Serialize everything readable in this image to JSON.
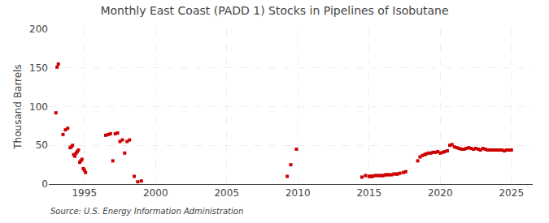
{
  "chart_data": {
    "type": "scatter",
    "title": "Monthly East Coast (PADD 1) Stocks in Pipelines of Isobutane",
    "ylabel": "Thousand Barrels",
    "annotations": [
      "Source: U.S. Energy Information Administration"
    ],
    "color": "#cc0000",
    "marker": "square",
    "grid": true,
    "xlim": [
      1992.5,
      2026.5
    ],
    "ylim": [
      0,
      200
    ],
    "xticks": [
      1995,
      2000,
      2005,
      2010,
      2015,
      2020,
      2025
    ],
    "yticks": [
      0,
      50,
      100,
      150,
      200
    ],
    "x": [
      1993.0,
      1993.08,
      1993.17,
      1993.5,
      1993.67,
      1993.83,
      1994.0,
      1994.08,
      1994.17,
      1994.25,
      1994.33,
      1994.42,
      1994.5,
      1994.58,
      1994.67,
      1994.75,
      1994.83,
      1994.92,
      1995.0,
      1995.08,
      1996.5,
      1996.67,
      1996.83,
      1997.0,
      1997.17,
      1997.33,
      1997.5,
      1997.67,
      1997.83,
      1998.0,
      1998.17,
      1998.5,
      1998.75,
      1999.0,
      2009.25,
      2009.5,
      2009.9,
      2014.5,
      2014.75,
      2015.0,
      2015.08,
      2015.17,
      2015.25,
      2015.42,
      2015.58,
      2015.75,
      2015.92,
      2016.0,
      2016.17,
      2016.25,
      2016.42,
      2016.58,
      2016.75,
      2016.92,
      2017.0,
      2017.17,
      2017.42,
      2017.58,
      2018.42,
      2018.58,
      2018.75,
      2018.92,
      2019.0,
      2019.17,
      2019.33,
      2019.5,
      2019.67,
      2019.83,
      2020.0,
      2020.17,
      2020.33,
      2020.5,
      2020.67,
      2020.83,
      2021.0,
      2021.17,
      2021.33,
      2021.5,
      2021.67,
      2021.83,
      2022.0,
      2022.17,
      2022.33,
      2022.5,
      2022.67,
      2022.83,
      2023.0,
      2023.17,
      2023.33,
      2023.5,
      2023.67,
      2023.83,
      2024.0,
      2024.17,
      2024.33,
      2024.5,
      2024.67,
      2024.83,
      2025.0
    ],
    "values": [
      92,
      151,
      155,
      64,
      70,
      72,
      47,
      48,
      50,
      38,
      36,
      40,
      42,
      44,
      28,
      30,
      32,
      20,
      18,
      15,
      63,
      64,
      65,
      30,
      65,
      66,
      55,
      57,
      40,
      55,
      57,
      10,
      3,
      4,
      10,
      25,
      45,
      9,
      11,
      10,
      10,
      10,
      10,
      11,
      11,
      11,
      11,
      11,
      12,
      12,
      12,
      12,
      13,
      13,
      13,
      14,
      15,
      16,
      30,
      35,
      37,
      38,
      39,
      40,
      40,
      41,
      41,
      42,
      40,
      41,
      42,
      43,
      50,
      51,
      48,
      47,
      46,
      45,
      45,
      46,
      47,
      46,
      45,
      46,
      45,
      44,
      46,
      45,
      44,
      44,
      44,
      44,
      44,
      44,
      44,
      43,
      44,
      44,
      44
    ]
  }
}
